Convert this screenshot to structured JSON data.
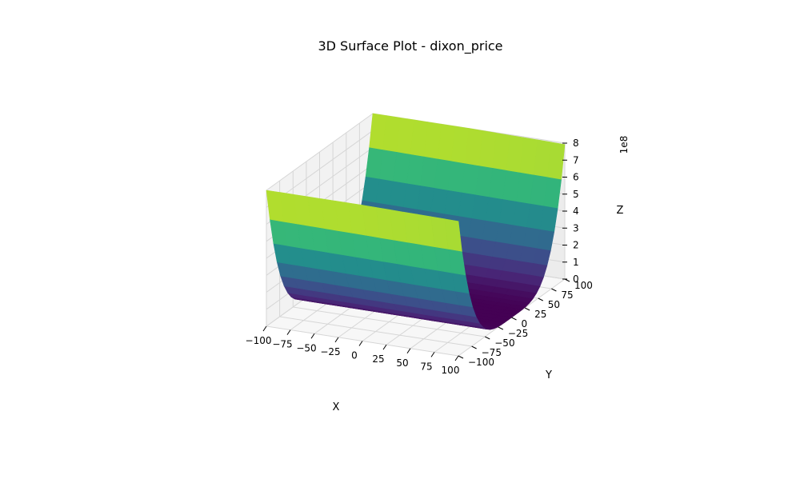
{
  "chart_data": {
    "type": "surface",
    "title": "3D Surface Plot - dixon_price",
    "xlabel": "X",
    "ylabel": "Y",
    "zlabel": "Z",
    "z_offset_label": "1e8",
    "colormap": "viridis",
    "x_range": [
      -100,
      100
    ],
    "y_range": [
      -100,
      100
    ],
    "z_range": [
      0,
      800000000
    ],
    "x_ticks": [
      "−100",
      "−75",
      "−50",
      "−25",
      "0",
      "25",
      "50",
      "75",
      "100"
    ],
    "y_ticks": [
      "−100",
      "−75",
      "−50",
      "−25",
      "0",
      "25",
      "50",
      "75",
      "100"
    ],
    "z_ticks": [
      "0",
      "1",
      "2",
      "3",
      "4",
      "5",
      "6",
      "7",
      "8"
    ],
    "surface_function": "(x - 1)^2 + 2*(2*y^2 - x)^2",
    "grid": true,
    "colors": {
      "pane": "#f2f2f2",
      "grid": "#d6d6d6",
      "surface_low": "#440154",
      "surface_high": "#fde725"
    }
  }
}
